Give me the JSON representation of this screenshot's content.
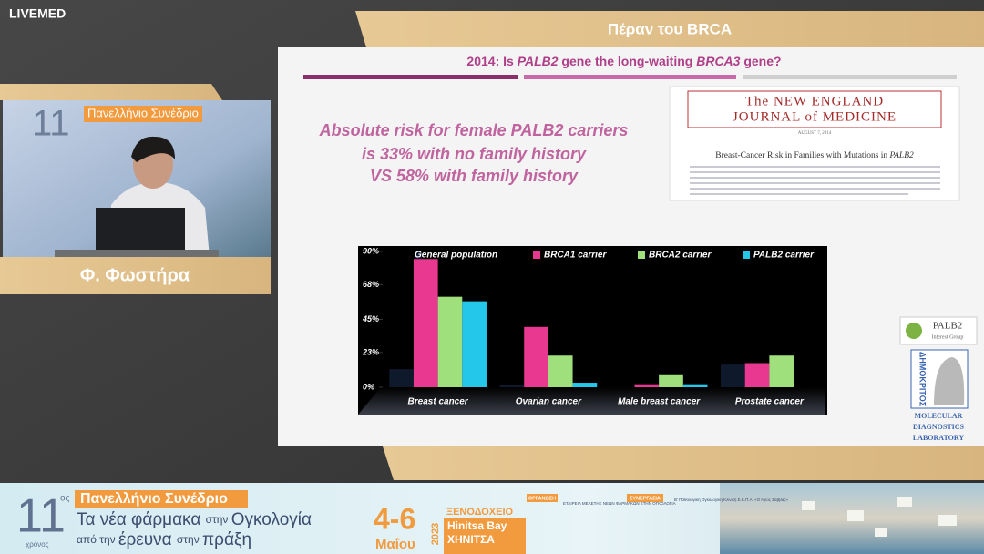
{
  "header": {
    "logo": "LIVEMED"
  },
  "speaker": {
    "name": "Φ. Φωστήρα"
  },
  "slide": {
    "section": "Πέραν του BRCA",
    "subtitle": [
      "2014: Is ",
      "PALB2",
      " gene the long-waiting ",
      "BRCA3",
      " gene?"
    ],
    "statement": [
      "Absolute risk for female PALB2 carriers",
      "is 33% with no family history",
      "VS 58% with family history"
    ],
    "journal": {
      "masthead": [
        "The NEW ENGLAND",
        "JOURNAL of MEDICINE"
      ],
      "date": "AUGUST 7, 2014",
      "article": [
        "Breast-Cancer Risk in Families with Mutations in ",
        "PALB2"
      ]
    },
    "logos": {
      "palb2": [
        "PALB2",
        "Interest Group"
      ],
      "institute": "ΔΗΜΟΚΡΙΤΟΣ",
      "lab": [
        "MOLECULAR",
        "DIAGNOSTICS",
        "LABORATORY"
      ]
    }
  },
  "chart_data": {
    "type": "bar",
    "categories": [
      "Breast cancer",
      "Ovarian cancer",
      "Male breast cancer",
      "Prostate cancer"
    ],
    "series": [
      {
        "name": "General population",
        "color": "#0e1a2c",
        "values": [
          12,
          1.5,
          0.1,
          15
        ]
      },
      {
        "name": "BRCA1 carrier",
        "color": "#e8388f",
        "values": [
          85,
          40,
          2,
          16
        ]
      },
      {
        "name": "BRCA2 carrier",
        "color": "#9fe07c",
        "values": [
          60,
          21,
          8,
          21
        ]
      },
      {
        "name": "PALB2 carrier",
        "color": "#24c6ea",
        "values": [
          57,
          3,
          2,
          null
        ]
      }
    ],
    "ylim": [
      0,
      90
    ],
    "yticks": [
      {
        "value": 0,
        "label": "0%"
      },
      {
        "value": 23,
        "label": "23%"
      },
      {
        "value": 45,
        "label": "45%"
      },
      {
        "value": 68,
        "label": "68%"
      },
      {
        "value": 90,
        "label": "90%"
      }
    ]
  },
  "banner": {
    "edition": "11",
    "ordinal": "ος",
    "years": "χρόνος",
    "congress": "Πανελλήνιο Συνέδριο",
    "line1": [
      "Τα νέα φάρμακα ",
      "στην ",
      "Ογκολογία"
    ],
    "line2": [
      "από την ",
      "έρευνα ",
      "στην ",
      "πράξη"
    ],
    "dates": "4-6",
    "month": "Μαΐου",
    "year": "2023",
    "venue": [
      "ΞΕΝΟΔΟΧΕΙΟ",
      "Hinitsa Bay",
      "ΧΗΝΙΤΣΑ"
    ],
    "organizer_label": "ΟΡΓΑΝΩΣΗ",
    "organizer": "ΕΤΑΙΡΕΙΑ ΜΕΛΕΤΗΣ ΝΕΩΝ ΦΑΡΜΑΚΩΝ ΣΤΗΝ ΟΓΚΟΛΟΓΙΑ",
    "partner_label": "ΣΥΝΕΡΓΑΣΙΑ",
    "partner": "Β' Παθολογική Ογκολογική Κλινική Ε.Κ.Π.Α. «Ο Άγιος Σάββας»"
  }
}
